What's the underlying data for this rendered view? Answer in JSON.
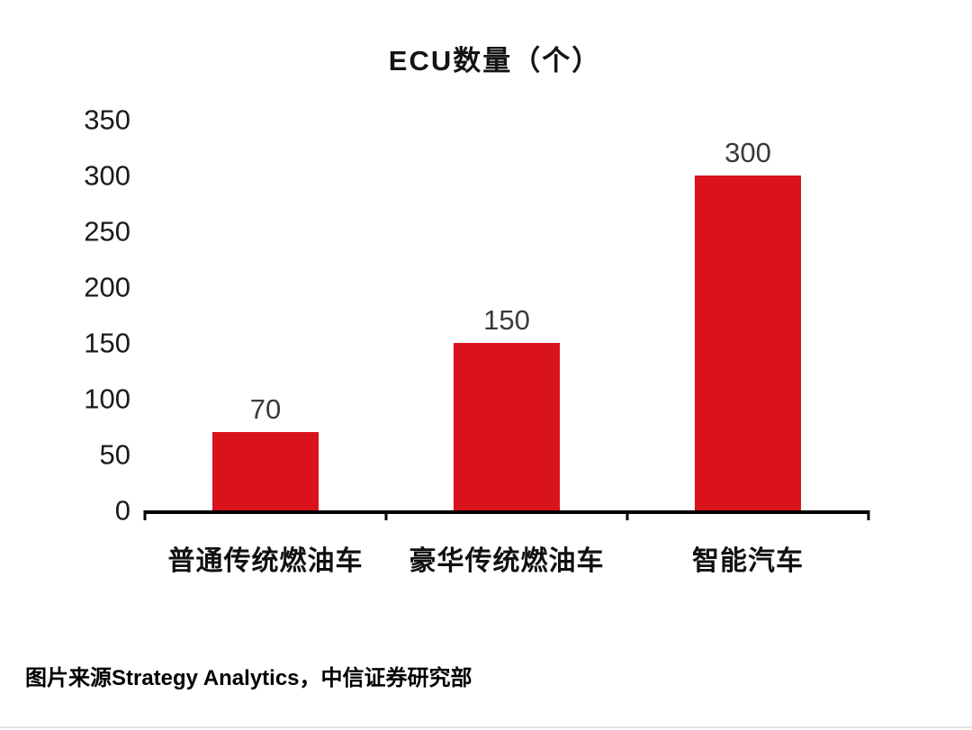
{
  "title": "ECU数量（个）",
  "source": "图片来源Strategy Analytics，中信证券研究部",
  "chart_data": {
    "type": "bar",
    "title": "ECU数量（个）",
    "categories": [
      "普通传统燃油车",
      "豪华传统燃油车",
      "智能汽车"
    ],
    "values": [
      70,
      150,
      300
    ],
    "xlabel": "",
    "ylabel": "",
    "ylim": [
      0,
      350
    ],
    "yticks": [
      0,
      50,
      100,
      150,
      200,
      250,
      300,
      350
    ],
    "grid": false,
    "legend": "none",
    "bar_color": "#d9121b",
    "value_label_color": "#3b3b3b",
    "axis_color": "#000000"
  }
}
